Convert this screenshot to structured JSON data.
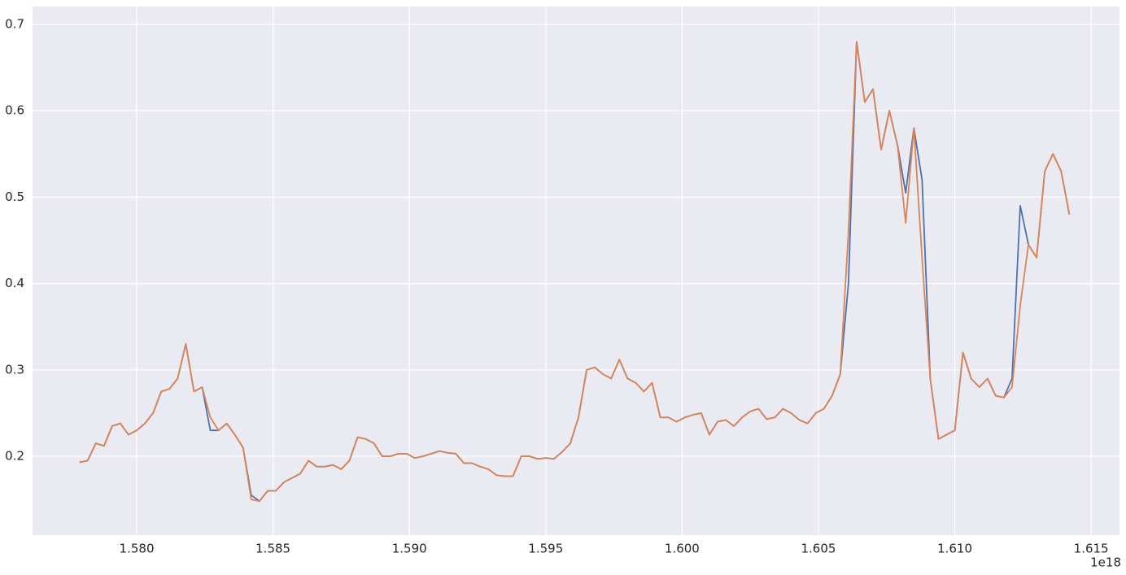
{
  "chart_data": {
    "type": "line",
    "x": [
      1.5779e+18,
      1.5782e+18,
      1.5785e+18,
      1.5788e+18,
      1.5791e+18,
      1.5794e+18,
      1.5797e+18,
      1.58e+18,
      1.5803e+18,
      1.5806e+18,
      1.5809e+18,
      1.5812e+18,
      1.5815e+18,
      1.5818e+18,
      1.5821e+18,
      1.5824e+18,
      1.5827e+18,
      1.583e+18,
      1.5833e+18,
      1.5836e+18,
      1.5839e+18,
      1.5842e+18,
      1.5845e+18,
      1.5848e+18,
      1.5851e+18,
      1.5854e+18,
      1.5857e+18,
      1.586e+18,
      1.5863e+18,
      1.5866e+18,
      1.5869e+18,
      1.5872e+18,
      1.5875e+18,
      1.5878e+18,
      1.5881e+18,
      1.5884e+18,
      1.5887e+18,
      1.589e+18,
      1.5893e+18,
      1.5896e+18,
      1.5899e+18,
      1.5902e+18,
      1.5905e+18,
      1.5908e+18,
      1.5911e+18,
      1.5914e+18,
      1.5917e+18,
      1.592e+18,
      1.5923e+18,
      1.5926e+18,
      1.5929e+18,
      1.5932e+18,
      1.5935e+18,
      1.5938e+18,
      1.5941e+18,
      1.5944e+18,
      1.5947e+18,
      1.595e+18,
      1.5953e+18,
      1.5956e+18,
      1.5959e+18,
      1.5962e+18,
      1.5965e+18,
      1.5968e+18,
      1.5971e+18,
      1.5974e+18,
      1.5977e+18,
      1.598e+18,
      1.5983e+18,
      1.5986e+18,
      1.5989e+18,
      1.5992e+18,
      1.5995e+18,
      1.5998e+18,
      1.6001e+18,
      1.6004e+18,
      1.6007e+18,
      1.601e+18,
      1.6013e+18,
      1.6016e+18,
      1.6019e+18,
      1.6022e+18,
      1.6025e+18,
      1.6028e+18,
      1.6031e+18,
      1.6034e+18,
      1.6037e+18,
      1.604e+18,
      1.6043e+18,
      1.6046e+18,
      1.6049e+18,
      1.6052e+18,
      1.6055e+18,
      1.6058e+18,
      1.6061e+18,
      1.6064e+18,
      1.6067e+18,
      1.607e+18,
      1.6073e+18,
      1.6076e+18,
      1.6079e+18,
      1.6082e+18,
      1.6085e+18,
      1.6088e+18,
      1.6091e+18,
      1.6094e+18,
      1.6097e+18,
      1.61e+18,
      1.6103e+18,
      1.6106e+18,
      1.6109e+18,
      1.6112e+18,
      1.6115e+18,
      1.6118e+18,
      1.6121e+18,
      1.6124e+18,
      1.6127e+18,
      1.613e+18,
      1.6133e+18,
      1.6136e+18,
      1.6139e+18,
      1.6142e+18
    ],
    "series": [
      {
        "color": "#4c72b0",
        "values": [
          0.193,
          0.195,
          0.215,
          0.212,
          0.235,
          0.238,
          0.225,
          0.23,
          0.238,
          0.25,
          0.275,
          0.278,
          0.29,
          0.33,
          0.275,
          0.28,
          0.23,
          0.23,
          0.238,
          0.225,
          0.21,
          0.155,
          0.148,
          0.16,
          0.16,
          0.17,
          0.175,
          0.18,
          0.195,
          0.188,
          0.188,
          0.19,
          0.185,
          0.195,
          0.222,
          0.22,
          0.215,
          0.2,
          0.2,
          0.203,
          0.203,
          0.198,
          0.2,
          0.203,
          0.206,
          0.204,
          0.203,
          0.192,
          0.192,
          0.188,
          0.185,
          0.178,
          0.177,
          0.177,
          0.2,
          0.2,
          0.197,
          0.198,
          0.197,
          0.205,
          0.215,
          0.245,
          0.3,
          0.303,
          0.295,
          0.29,
          0.312,
          0.29,
          0.285,
          0.275,
          0.285,
          0.245,
          0.245,
          0.24,
          0.245,
          0.248,
          0.25,
          0.225,
          0.24,
          0.242,
          0.235,
          0.245,
          0.252,
          0.255,
          0.243,
          0.245,
          0.255,
          0.25,
          0.242,
          0.238,
          0.25,
          0.255,
          0.27,
          0.295,
          0.4,
          0.68,
          0.61,
          0.625,
          0.555,
          0.6,
          0.56,
          0.505,
          0.58,
          0.52,
          0.29,
          0.22,
          0.225,
          0.23,
          0.32,
          0.29,
          0.28,
          0.29,
          0.27,
          0.268,
          0.29,
          0.49,
          0.445,
          0.43,
          0.53,
          0.55,
          0.53,
          0.48
        ]
      },
      {
        "color": "#dd8452",
        "values": [
          0.193,
          0.195,
          0.215,
          0.212,
          0.235,
          0.238,
          0.225,
          0.23,
          0.238,
          0.25,
          0.275,
          0.278,
          0.29,
          0.33,
          0.275,
          0.28,
          0.245,
          0.23,
          0.238,
          0.225,
          0.21,
          0.15,
          0.148,
          0.16,
          0.16,
          0.17,
          0.175,
          0.18,
          0.195,
          0.188,
          0.188,
          0.19,
          0.185,
          0.195,
          0.222,
          0.22,
          0.215,
          0.2,
          0.2,
          0.203,
          0.203,
          0.198,
          0.2,
          0.203,
          0.206,
          0.204,
          0.203,
          0.192,
          0.192,
          0.188,
          0.185,
          0.178,
          0.177,
          0.177,
          0.2,
          0.2,
          0.197,
          0.198,
          0.197,
          0.205,
          0.215,
          0.245,
          0.3,
          0.303,
          0.295,
          0.29,
          0.312,
          0.29,
          0.285,
          0.275,
          0.285,
          0.245,
          0.245,
          0.24,
          0.245,
          0.248,
          0.25,
          0.225,
          0.24,
          0.242,
          0.235,
          0.245,
          0.252,
          0.255,
          0.243,
          0.245,
          0.255,
          0.25,
          0.242,
          0.238,
          0.25,
          0.255,
          0.27,
          0.295,
          0.46,
          0.68,
          0.61,
          0.625,
          0.555,
          0.6,
          0.56,
          0.47,
          0.58,
          0.43,
          0.29,
          0.22,
          0.225,
          0.23,
          0.32,
          0.29,
          0.28,
          0.29,
          0.27,
          0.268,
          0.28,
          0.375,
          0.445,
          0.43,
          0.53,
          0.55,
          0.53,
          0.48
        ]
      }
    ],
    "xlim": [
      1.57618e+18,
      1.61604e+18
    ],
    "ylim": [
      0.1087,
      0.7207
    ],
    "xticks": [
      {
        "value": 1.58e+18,
        "label": "1.580"
      },
      {
        "value": 1.585e+18,
        "label": "1.585"
      },
      {
        "value": 1.59e+18,
        "label": "1.590"
      },
      {
        "value": 1.595e+18,
        "label": "1.595"
      },
      {
        "value": 1.6e+18,
        "label": "1.600"
      },
      {
        "value": 1.605e+18,
        "label": "1.605"
      },
      {
        "value": 1.61e+18,
        "label": "1.610"
      },
      {
        "value": 1.615e+18,
        "label": "1.615"
      }
    ],
    "yticks": [
      0.2,
      0.3,
      0.4,
      0.5,
      0.6,
      0.7
    ],
    "x_offset_label": "1e18",
    "grid": true
  }
}
